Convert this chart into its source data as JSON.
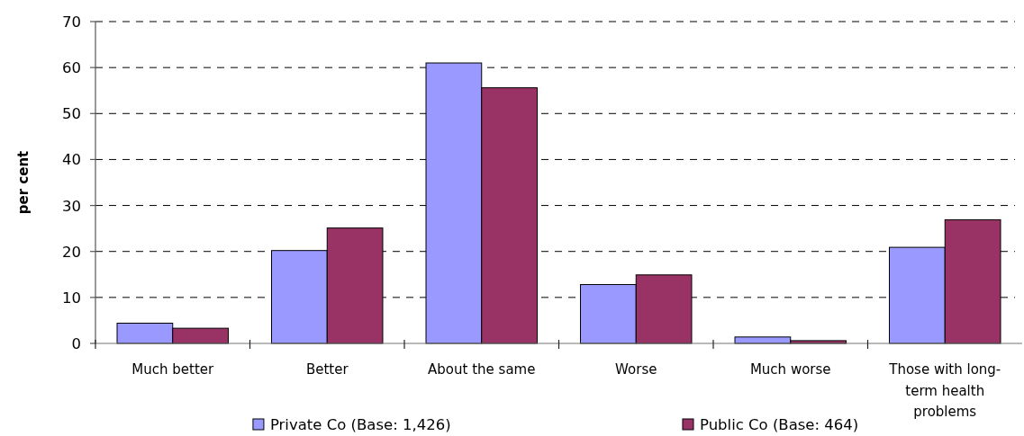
{
  "chart_data": {
    "type": "bar",
    "ylabel": "per cent",
    "categories": [
      "Much better",
      "Better",
      "About the same",
      "Worse",
      "Much worse",
      "Those with long-term health problems"
    ],
    "series": [
      {
        "name": "Private Co (Base: 1,426)",
        "color": "#9999ff",
        "values": [
          4.4,
          20.2,
          61,
          12.8,
          1.4,
          20.9
        ]
      },
      {
        "name": "Public Co (Base: 464)",
        "color": "#993366",
        "values": [
          3.3,
          25.1,
          55.6,
          14.9,
          0.6,
          26.9
        ]
      }
    ],
    "ylim": [
      0,
      70
    ],
    "yticks": [
      0,
      10,
      20,
      30,
      40,
      50,
      60,
      70
    ],
    "grid": "y",
    "legend": "bottom"
  }
}
